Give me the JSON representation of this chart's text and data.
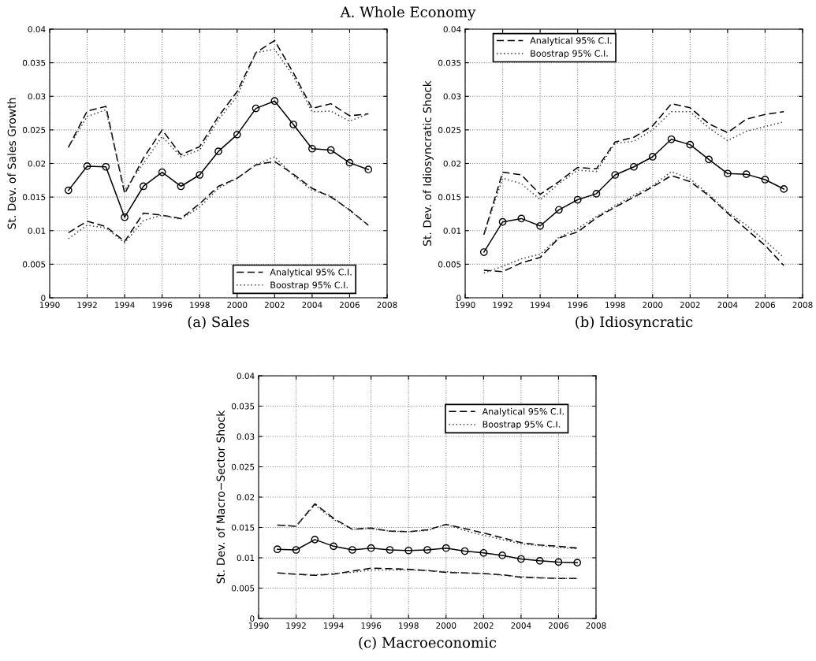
{
  "chart_data": [
    {
      "type": "line",
      "title": "A. Whole Economy",
      "xlabel": "(a) Sales",
      "ylabel": "St. Dev. of Sales Growth",
      "xlim": [
        1990,
        2008
      ],
      "ylim": [
        0,
        0.04
      ],
      "xticks": [
        1990,
        1992,
        1994,
        1996,
        1998,
        2000,
        2002,
        2004,
        2006,
        2008
      ],
      "yticks": [
        0,
        0.005,
        0.01,
        0.015,
        0.02,
        0.025,
        0.03,
        0.035,
        0.04
      ],
      "grid": true,
      "legend": "bottom right",
      "x": [
        1991,
        1992,
        1993,
        1994,
        1995,
        1996,
        1997,
        1998,
        1999,
        2000,
        2001,
        2002,
        2003,
        2004,
        2005,
        2006,
        2007
      ],
      "series": [
        {
          "color": "#000000",
          "marker": "circle",
          "line_style": "solid",
          "values": [
            0.016,
            0.0196,
            0.0195,
            0.012,
            0.0166,
            0.0187,
            0.0166,
            0.0183,
            0.0218,
            0.0243,
            0.0282,
            0.0293,
            0.0258,
            0.0222,
            0.022,
            0.0201,
            0.0191
          ]
        },
        {
          "name": "Analytical 95% C.I.",
          "color": "#000000",
          "marker": "none",
          "line_style": "dashed",
          "values": [
            0.0224,
            0.0278,
            0.0285,
            0.0155,
            0.0208,
            0.025,
            0.0213,
            0.0225,
            0.027,
            0.0307,
            0.0365,
            0.0383,
            0.0335,
            0.0282,
            0.0289,
            0.0271,
            0.0274
          ]
        },
        {
          "color": "#000000",
          "marker": "none",
          "line_style": "dashed",
          "values": [
            0.0097,
            0.0114,
            0.0106,
            0.0084,
            0.0126,
            0.0123,
            0.0118,
            0.014,
            0.0166,
            0.0178,
            0.0198,
            0.0203,
            0.0184,
            0.0163,
            0.015,
            0.0131,
            0.0108
          ]
        },
        {
          "name": "Boostrap 95% C.I.",
          "color": "#444444",
          "marker": "none",
          "line_style": "dotted",
          "values": [
            0.0224,
            0.027,
            0.028,
            0.016,
            0.02,
            0.024,
            0.021,
            0.022,
            0.0265,
            0.03,
            0.0365,
            0.037,
            0.033,
            0.0277,
            0.0278,
            0.0263,
            0.0274
          ]
        },
        {
          "color": "#444444",
          "marker": "none",
          "line_style": "dotted",
          "values": [
            0.0088,
            0.0108,
            0.0104,
            0.0082,
            0.0115,
            0.0123,
            0.0117,
            0.0135,
            0.0163,
            0.0178,
            0.0198,
            0.021,
            0.0182,
            0.016,
            0.0152,
            0.013,
            0.0108
          ]
        }
      ]
    },
    {
      "type": "line",
      "xlabel": "(b) Idiosyncratic",
      "ylabel": "St. Dev. of Idiosyncratic Shock",
      "xlim": [
        1990,
        2008
      ],
      "ylim": [
        0,
        0.04
      ],
      "xticks": [
        1990,
        1992,
        1994,
        1996,
        1998,
        2000,
        2002,
        2004,
        2006,
        2008
      ],
      "yticks": [
        0,
        0.005,
        0.01,
        0.015,
        0.02,
        0.025,
        0.03,
        0.035,
        0.04
      ],
      "grid": true,
      "legend": "top left",
      "x": [
        1991,
        1992,
        1993,
        1994,
        1995,
        1996,
        1997,
        1998,
        1999,
        2000,
        2001,
        2002,
        2003,
        2004,
        2005,
        2006,
        2007
      ],
      "series": [
        {
          "color": "#000000",
          "marker": "circle",
          "line_style": "solid",
          "values": [
            0.0068,
            0.0113,
            0.0118,
            0.0107,
            0.0131,
            0.0146,
            0.0155,
            0.0183,
            0.0195,
            0.021,
            0.0236,
            0.0228,
            0.0206,
            0.0185,
            0.0184,
            0.0176,
            0.0162
          ]
        },
        {
          "name": "Analytical 95% C.I.",
          "color": "#000000",
          "marker": "none",
          "line_style": "dashed",
          "values": [
            0.0094,
            0.0187,
            0.0183,
            0.0154,
            0.0173,
            0.0194,
            0.0192,
            0.0232,
            0.0239,
            0.0256,
            0.0289,
            0.0283,
            0.0259,
            0.0246,
            0.0266,
            0.0273,
            0.0277
          ]
        },
        {
          "color": "#000000",
          "marker": "none",
          "line_style": "dashed",
          "values": [
            0.0041,
            0.0039,
            0.0052,
            0.006,
            0.0089,
            0.0098,
            0.0119,
            0.0135,
            0.015,
            0.0165,
            0.0182,
            0.0173,
            0.0152,
            0.0126,
            0.0102,
            0.0078,
            0.0048
          ]
        },
        {
          "name": "Boostrap 95% C.I.",
          "color": "#444444",
          "marker": "none",
          "line_style": "dotted",
          "values": [
            0.0094,
            0.0178,
            0.017,
            0.0146,
            0.017,
            0.019,
            0.0188,
            0.023,
            0.0233,
            0.025,
            0.0277,
            0.0277,
            0.0253,
            0.0234,
            0.0248,
            0.0255,
            0.0262
          ]
        },
        {
          "color": "#444444",
          "marker": "none",
          "line_style": "dotted",
          "values": [
            0.0037,
            0.0047,
            0.0058,
            0.0065,
            0.009,
            0.0103,
            0.0121,
            0.0137,
            0.0153,
            0.0167,
            0.0188,
            0.0177,
            0.0154,
            0.0128,
            0.0108,
            0.0085,
            0.006
          ]
        }
      ]
    },
    {
      "type": "line",
      "xlabel": "(c) Macroeconomic",
      "ylabel": "St. Dev. of Macro−Sector Shock",
      "xlim": [
        1990,
        2008
      ],
      "ylim": [
        0,
        0.04
      ],
      "xticks": [
        1990,
        1992,
        1994,
        1996,
        1998,
        2000,
        2002,
        2004,
        2006,
        2008
      ],
      "yticks": [
        0,
        0.005,
        0.01,
        0.015,
        0.02,
        0.025,
        0.03,
        0.035,
        0.04
      ],
      "grid": true,
      "legend": "top right",
      "x": [
        1991,
        1992,
        1993,
        1994,
        1995,
        1996,
        1997,
        1998,
        1999,
        2000,
        2001,
        2002,
        2003,
        2004,
        2005,
        2006,
        2007
      ],
      "series": [
        {
          "color": "#000000",
          "marker": "circle",
          "line_style": "solid",
          "values": [
            0.0114,
            0.0113,
            0.013,
            0.0119,
            0.0113,
            0.0116,
            0.0113,
            0.0112,
            0.0113,
            0.0116,
            0.0111,
            0.0108,
            0.0104,
            0.0098,
            0.0095,
            0.0093,
            0.0092
          ]
        },
        {
          "name": "Analytical 95% C.I.",
          "color": "#000000",
          "marker": "none",
          "line_style": "dashed",
          "values": [
            0.0154,
            0.0152,
            0.0189,
            0.0165,
            0.0147,
            0.0149,
            0.0144,
            0.0143,
            0.0146,
            0.0155,
            0.0148,
            0.0141,
            0.0133,
            0.0125,
            0.0121,
            0.0119,
            0.0116
          ]
        },
        {
          "color": "#000000",
          "marker": "none",
          "line_style": "dashed",
          "values": [
            0.0075,
            0.0073,
            0.0071,
            0.0073,
            0.0078,
            0.0083,
            0.0082,
            0.0081,
            0.0079,
            0.0076,
            0.0075,
            0.0074,
            0.0072,
            0.0068,
            0.0067,
            0.0066,
            0.0066
          ]
        },
        {
          "name": "Boostrap 95% C.I.",
          "color": "#444444",
          "marker": "none",
          "line_style": "dotted",
          "values": [
            0.0154,
            0.0152,
            0.0187,
            0.0163,
            0.0147,
            0.0148,
            0.0144,
            0.0143,
            0.0145,
            0.0155,
            0.0145,
            0.0137,
            0.013,
            0.0123,
            0.012,
            0.0117,
            0.0115
          ]
        },
        {
          "color": "#444444",
          "marker": "none",
          "line_style": "dotted",
          "values": [
            0.0075,
            0.0073,
            0.0072,
            0.0074,
            0.0076,
            0.008,
            0.008,
            0.008,
            0.0079,
            0.0077,
            0.0075,
            0.0074,
            0.0071,
            0.0069,
            0.0067,
            0.0066,
            0.0066
          ]
        }
      ]
    }
  ]
}
